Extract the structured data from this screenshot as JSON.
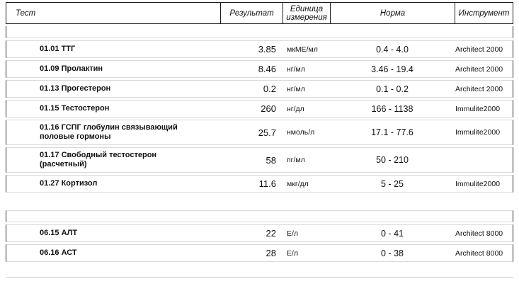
{
  "table": {
    "columns": [
      {
        "key": "test",
        "label": "Тест"
      },
      {
        "key": "result",
        "label": "Результат"
      },
      {
        "key": "unit",
        "label": "Единица измерения"
      },
      {
        "key": "norm",
        "label": "Норма"
      },
      {
        "key": "instrument",
        "label": "Инструмент"
      }
    ],
    "sections": [
      {
        "rows": [
          {
            "test": "01.01 ТТГ",
            "result": "3.85",
            "unit": "мкМЕ/мл",
            "norm": "0.4 - 4.0",
            "instrument": "Architect 2000"
          },
          {
            "test": "01.09 Пролактин",
            "result": "8.46",
            "unit": "нг/мл",
            "norm": "3.46 - 19.4",
            "instrument": "Architect 2000"
          },
          {
            "test": "01.13 Прогестерон",
            "result": "0.2",
            "unit": "нг/мл",
            "norm": "0.1 - 0.2",
            "instrument": "Architect 2000"
          },
          {
            "test": "01.15 Тестостерон",
            "result": "260",
            "unit": "нг/дл",
            "norm": "166 - 1138",
            "instrument": "Immulite2000"
          },
          {
            "test": "01.16 ГСПГ глобулин связывающий\nполовые гормоны",
            "result": "25.7",
            "unit": "нмоль/л",
            "norm": "17.1 - 77.6",
            "instrument": "Immulite2000"
          },
          {
            "test": "01.17 Свободный тестостерон\n(расчетный)",
            "result": "58",
            "unit": "пг/мл",
            "norm": "50 - 210",
            "instrument": ""
          },
          {
            "test": "01.27 Кортизол",
            "result": "11.6",
            "unit": "мкг/дл",
            "norm": "5 - 25",
            "instrument": "Immulite2000"
          }
        ]
      },
      {
        "rows": [
          {
            "test": "06.15 АЛТ",
            "result": "22",
            "unit": "Е/л",
            "norm": "0 - 41",
            "instrument": "Architect 8000"
          },
          {
            "test": "06.16 АСТ",
            "result": "28",
            "unit": "Е/л",
            "norm": "0 - 38",
            "instrument": "Architect 8000"
          }
        ]
      }
    ]
  }
}
